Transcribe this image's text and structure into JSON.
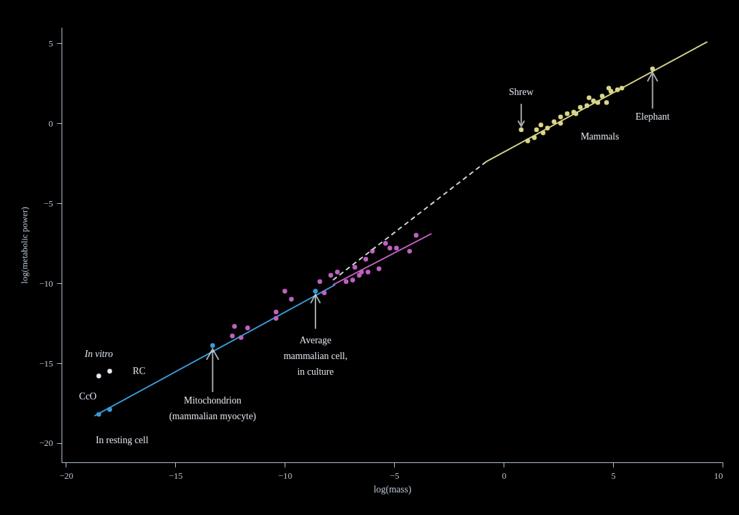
{
  "chart_data": {
    "type": "scatter",
    "xlabel": "log(mass)",
    "ylabel": "log(metabolic power)",
    "xlim": [
      -20.2,
      10
    ],
    "ylim": [
      -21.2,
      6
    ],
    "xticks": [
      -20,
      -15,
      -10,
      -5,
      0,
      5,
      10
    ],
    "yticks": [
      -20,
      -15,
      -10,
      -5,
      0,
      5
    ],
    "series": [
      {
        "type": "scatter",
        "marker": "circle",
        "color": "#e4e8ee",
        "x": [
          -18.5,
          -18.0
        ],
        "values": [
          -15.8,
          -15.5
        ]
      },
      {
        "type": "scatter",
        "marker": "circle",
        "color": "#3a9ad9",
        "x": [
          -18.5,
          -18.0,
          -13.3,
          -8.6
        ],
        "values": [
          -18.2,
          -17.9,
          -13.9,
          -10.5
        ]
      },
      {
        "type": "line",
        "color": "#3a9ad9",
        "line_style": "solid",
        "x": [
          -18.7,
          -7.7
        ],
        "values": [
          -18.3,
          -10.1
        ]
      },
      {
        "type": "scatter",
        "marker": "circle",
        "color": "#c060c0",
        "x": [
          -12.3,
          -11.7,
          -12.4,
          -12.0,
          -10.4,
          -10.4,
          -10.0,
          -9.7,
          -8.4,
          -8.2,
          -7.9,
          -7.6,
          -7.2,
          -6.9,
          -6.8,
          -6.5,
          -6.6,
          -6.3,
          -6.2,
          -6.0,
          -5.7,
          -5.4,
          -5.2,
          -4.9,
          -4.3,
          -4.0
        ],
        "values": [
          -12.7,
          -12.8,
          -13.3,
          -13.4,
          -11.8,
          -12.2,
          -10.5,
          -11.0,
          -9.9,
          -10.6,
          -9.5,
          -9.3,
          -9.9,
          -9.8,
          -9.0,
          -9.3,
          -9.5,
          -8.5,
          -9.3,
          -8.0,
          -9.1,
          -7.5,
          -7.8,
          -7.8,
          -8.0,
          -7.0
        ]
      },
      {
        "type": "line",
        "color": "#c060c0",
        "line_style": "solid",
        "x": [
          -7.8,
          -3.3
        ],
        "values": [
          -10.1,
          -6.9
        ]
      },
      {
        "type": "line",
        "color": "#d0d8e0",
        "line_style": "dashed",
        "x": [
          -7.8,
          -0.8
        ],
        "values": [
          -9.8,
          -2.4
        ]
      },
      {
        "type": "scatter",
        "marker": "circle",
        "color": "#d8d48a",
        "x": [
          0.8,
          1.1,
          1.4,
          1.5,
          1.7,
          1.8,
          2.0,
          2.3,
          2.6,
          2.6,
          2.9,
          3.2,
          3.3,
          3.5,
          3.8,
          3.9,
          4.1,
          4.3,
          4.5,
          4.7,
          4.8,
          4.9,
          5.2,
          5.4,
          6.8
        ],
        "values": [
          -0.4,
          -1.1,
          -0.9,
          -0.4,
          -0.1,
          -0.6,
          -0.3,
          0.1,
          0.4,
          0.0,
          0.6,
          0.7,
          0.6,
          1.0,
          1.1,
          1.6,
          1.4,
          1.3,
          1.7,
          1.3,
          2.2,
          2.0,
          2.1,
          2.2,
          3.4
        ]
      },
      {
        "type": "line",
        "color": "#d8d48a",
        "line_style": "solid",
        "x": [
          -0.8,
          9.3
        ],
        "values": [
          -2.4,
          5.1
        ]
      }
    ],
    "annotations": [
      {
        "text": "In vitro",
        "x": -18.5,
        "y": -15.8
      },
      {
        "text": "RC",
        "x": -18.0,
        "y": -15.5
      },
      {
        "text": "CcO",
        "x": -18.5,
        "y": -15.8
      },
      {
        "text": "In resting cell",
        "x": -18.5,
        "y": -18.2
      },
      {
        "text": "Mitochondrion\n(mammalian myocyte)",
        "x": -13.3,
        "y": -13.9
      },
      {
        "text": "Average\nmammalian cell,\nin culture",
        "x": -8.6,
        "y": -10.5
      },
      {
        "text": "Shrew",
        "x": 0.8,
        "y": -0.4
      },
      {
        "text": "Mammals",
        "x": 4.3,
        "y": 1.3
      },
      {
        "text": "Elephant",
        "x": 6.8,
        "y": 3.4
      }
    ]
  }
}
